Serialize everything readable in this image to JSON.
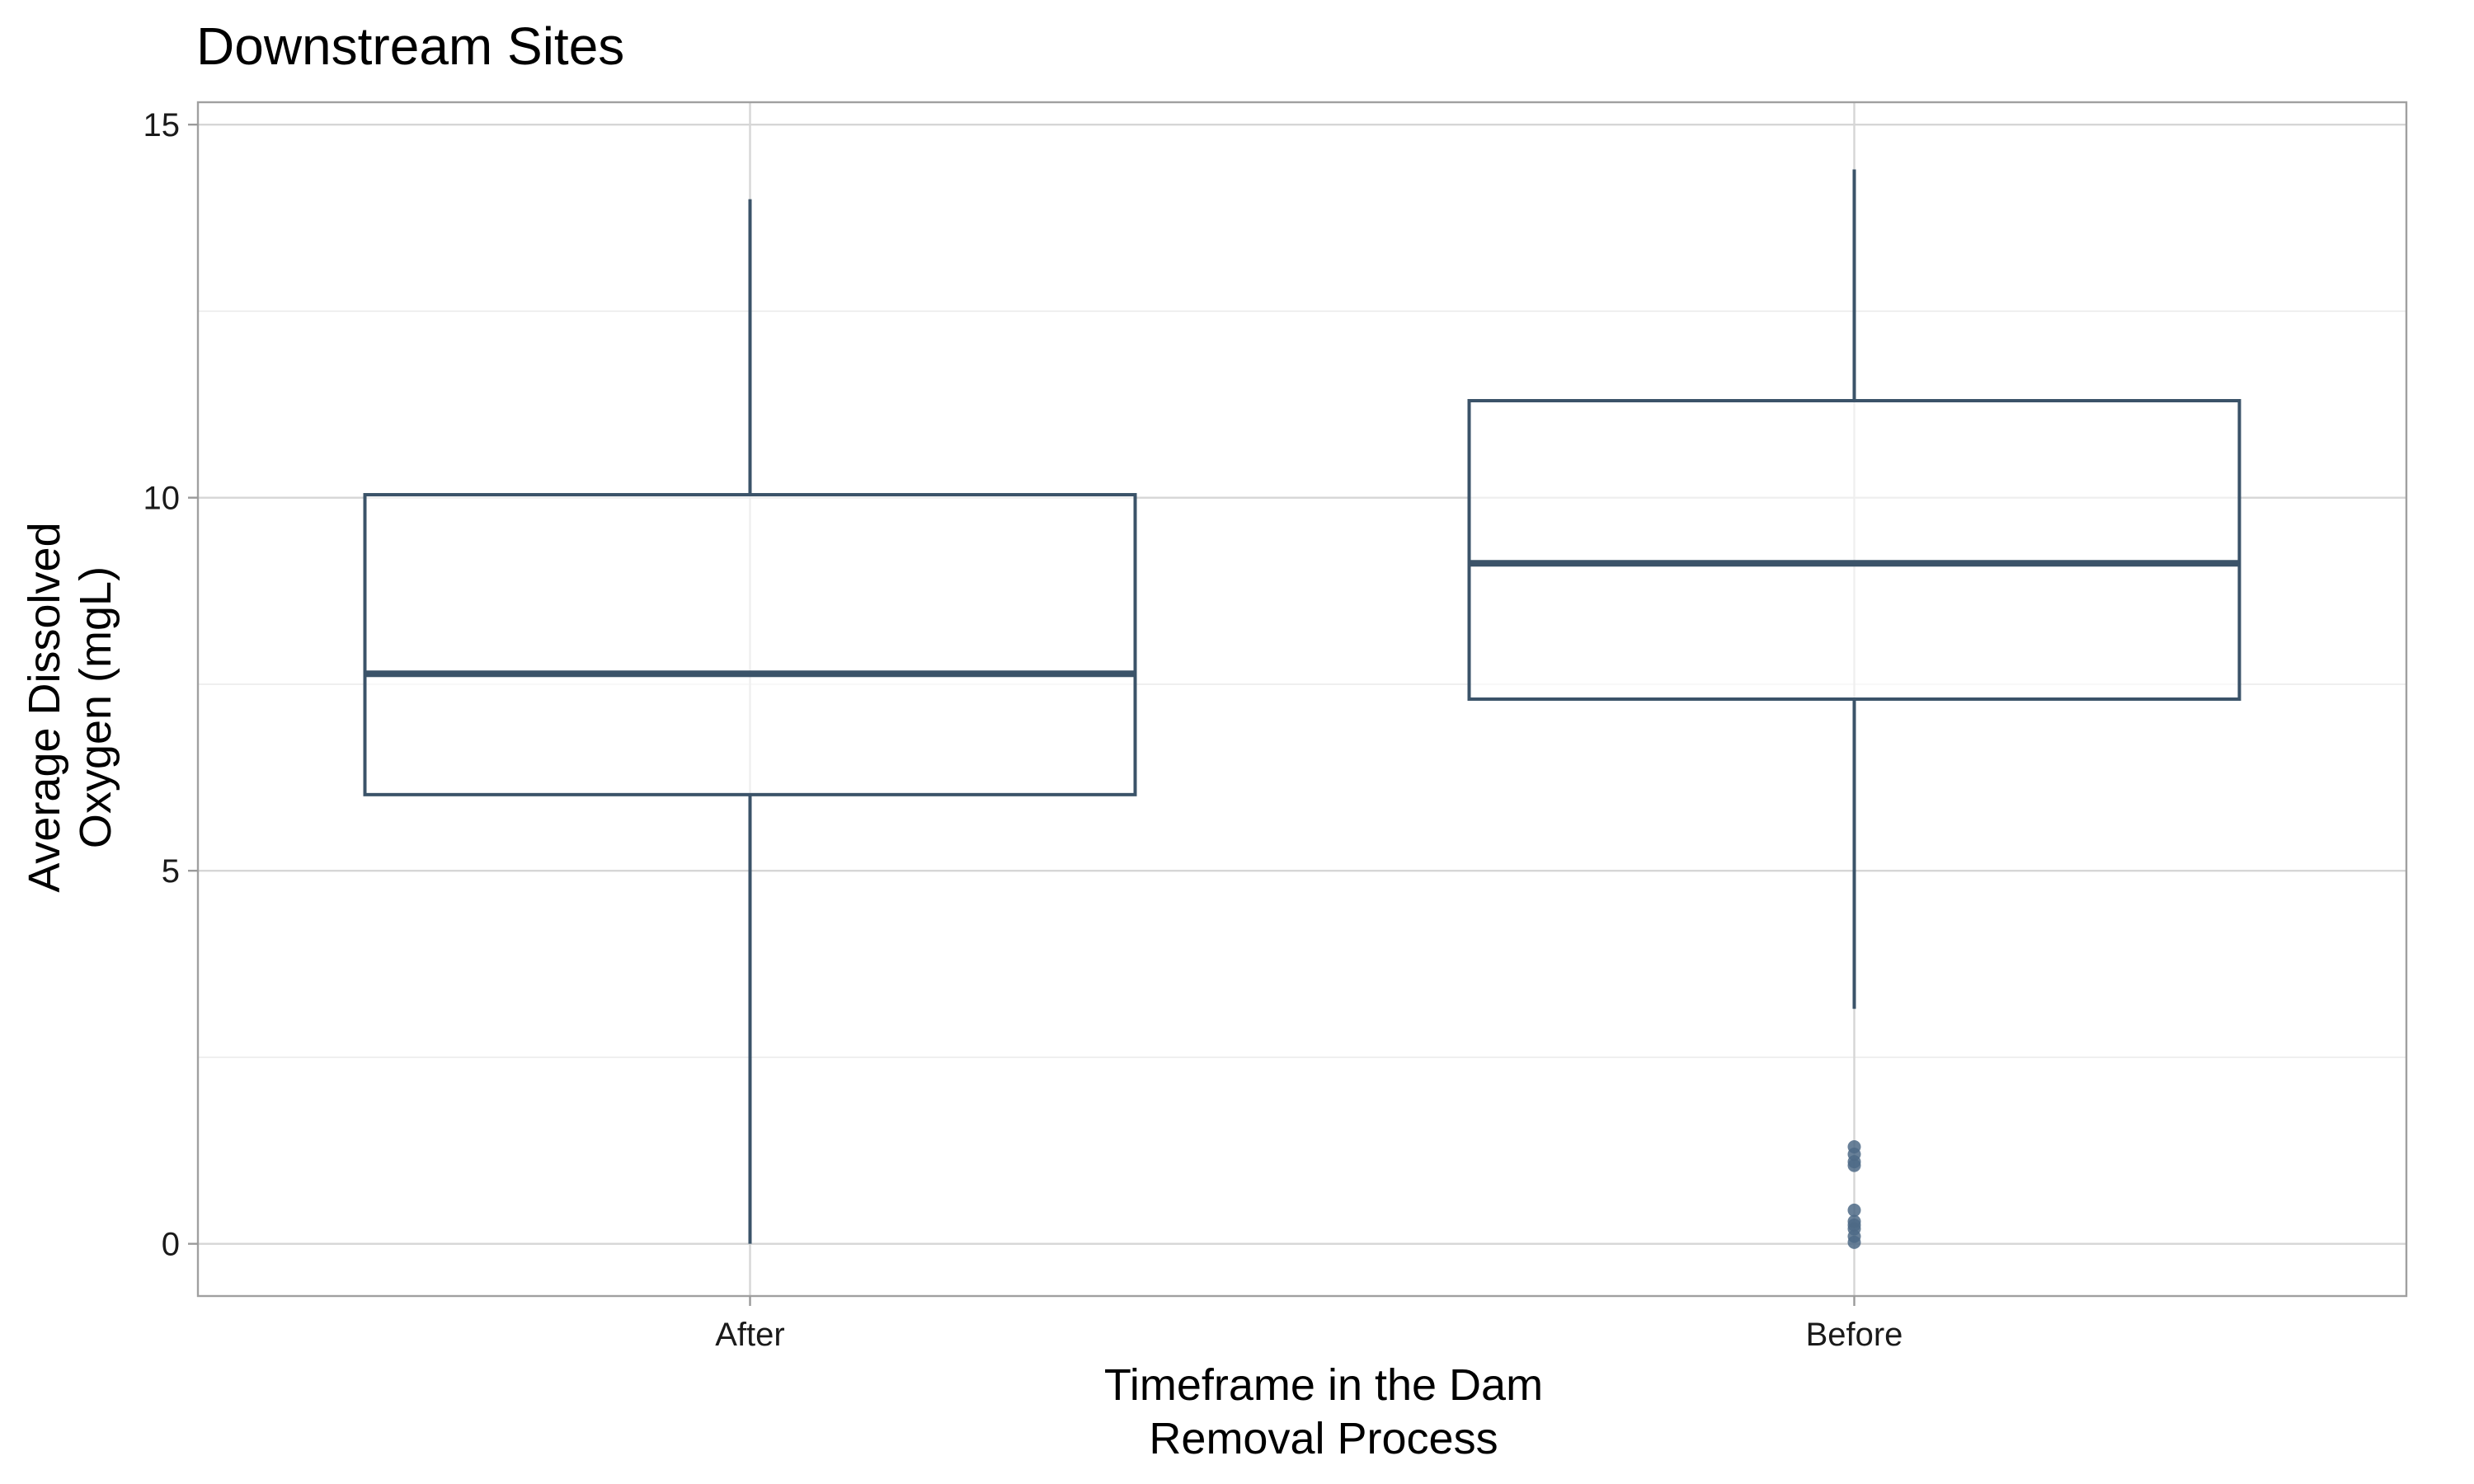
{
  "chart_data": {
    "type": "boxplot",
    "title": "Downstream Sites",
    "xlabel": [
      "Timeframe in the Dam",
      "Removal Process"
    ],
    "ylabel": [
      "Average Dissolved",
      "Oxygen (mgL)"
    ],
    "categories": [
      "After",
      "Before"
    ],
    "ylim": [
      -0.7,
      15.3
    ],
    "yticks": [
      0,
      5,
      10,
      15
    ],
    "grid": true,
    "boxes": [
      {
        "category": "After",
        "whisker_low": 0.0,
        "q1": 6.02,
        "median": 7.64,
        "q3": 10.04,
        "whisker_high": 14.0,
        "outliers": []
      },
      {
        "category": "Before",
        "whisker_low": 3.15,
        "q1": 7.3,
        "median": 9.12,
        "q3": 11.3,
        "whisker_high": 14.4,
        "outliers": [
          1.3,
          1.2,
          1.1,
          1.05,
          0.45,
          0.3,
          0.25,
          0.2,
          0.1,
          0.02
        ]
      }
    ],
    "colors": {
      "box": "#3b5369",
      "outlier": "#4e6a86"
    }
  }
}
